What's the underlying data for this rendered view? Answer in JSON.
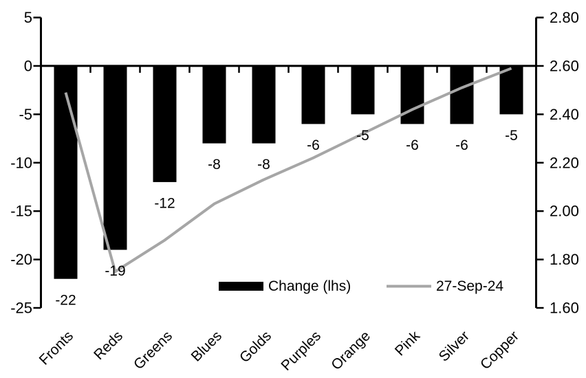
{
  "chart_data": {
    "type": "bar",
    "subtype": "combo-bar-line-dual-axis",
    "title": "",
    "xlabel": "",
    "ylabel_left": "",
    "ylabel_right": "",
    "grid": false,
    "legend_position": "bottom-inside",
    "categories": [
      "Fronts",
      "Reds",
      "Greens",
      "Blues",
      "Golds",
      "Purples",
      "Orange",
      "Pink",
      "Silver",
      "Copper"
    ],
    "series": [
      {
        "name": "Change (lhs)",
        "type": "bar",
        "axis": "left",
        "color": "#000000",
        "values": [
          -22,
          -19,
          -12,
          -8,
          -8,
          -6,
          -5,
          -6,
          -6,
          -5
        ],
        "data_labels": [
          "-22",
          "-19",
          "-12",
          "-8",
          "-8",
          "-6",
          "-5",
          "-6",
          "-6",
          "-5"
        ]
      },
      {
        "name": "27-Sep-24",
        "type": "line",
        "axis": "right",
        "color": "#a6a6a6",
        "values": [
          2.49,
          1.75,
          1.88,
          2.03,
          2.13,
          2.22,
          2.32,
          2.42,
          2.51,
          2.59
        ]
      }
    ],
    "left_axis": {
      "min": -25,
      "max": 5,
      "tick_labels": [
        "5",
        "0",
        "-5",
        "-10",
        "-15",
        "-20",
        "-25"
      ],
      "tick_values": [
        5,
        0,
        -5,
        -10,
        -15,
        -20,
        -25
      ]
    },
    "right_axis": {
      "min": 1.6,
      "max": 2.8,
      "tick_labels": [
        "2.80",
        "2.60",
        "2.40",
        "2.20",
        "2.00",
        "1.80",
        "1.60"
      ],
      "tick_values": [
        2.8,
        2.6,
        2.4,
        2.2,
        2.0,
        1.8,
        1.6
      ]
    },
    "legend": [
      {
        "label": "Change (lhs)",
        "swatch": "bar",
        "color": "#000000"
      },
      {
        "label": "27-Sep-24",
        "swatch": "line",
        "color": "#a6a6a6"
      }
    ]
  },
  "colors": {
    "background": "#ffffff",
    "bar": "#000000",
    "line": "#a6a6a6",
    "axis": "#000000",
    "text": "#000000"
  }
}
